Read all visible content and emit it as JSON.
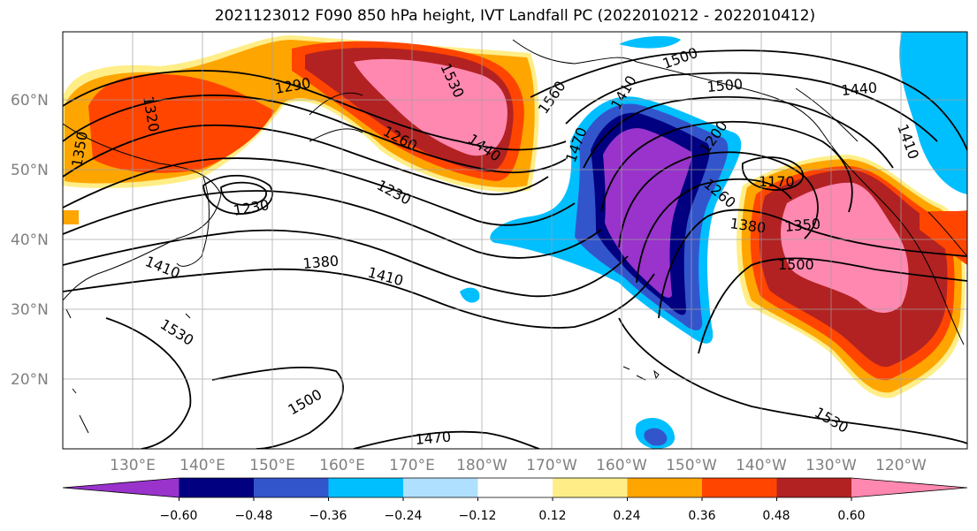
{
  "title": "2021123012 F090 850 hPa height, IVT Landfall PC (2022010212 - 2022010412)",
  "map": {
    "lat_ticks": [
      "60°N",
      "50°N",
      "40°N",
      "30°N",
      "20°N"
    ],
    "lon_ticks": [
      "130°E",
      "140°E",
      "150°E",
      "160°E",
      "170°E",
      "180°W",
      "170°W",
      "160°W",
      "150°W",
      "140°W",
      "130°W",
      "120°W"
    ],
    "contour_labels": [
      "1290",
      "1320",
      "1350",
      "1260",
      "1230",
      "1230",
      "1440",
      "1530",
      "1560",
      "1500",
      "1470",
      "1410",
      "1380",
      "1410",
      "1410",
      "1530",
      "1500",
      "1470",
      "1440",
      "1200",
      "1260",
      "1170",
      "1380",
      "1350",
      "1500",
      "1500",
      "1530",
      "1410"
    ]
  },
  "colorbar": {
    "ticks": [
      "−0.60",
      "−0.48",
      "−0.36",
      "−0.24",
      "−0.12",
      "0.12",
      "0.24",
      "0.36",
      "0.48",
      "0.60"
    ],
    "colors": [
      "#9933cc",
      "#000080",
      "#3355cc",
      "#00bfff",
      "#b0e0ff",
      "#ffffff",
      "#ffee88",
      "#ffa500",
      "#ff4500",
      "#b22222",
      "#ff88b0"
    ]
  }
}
